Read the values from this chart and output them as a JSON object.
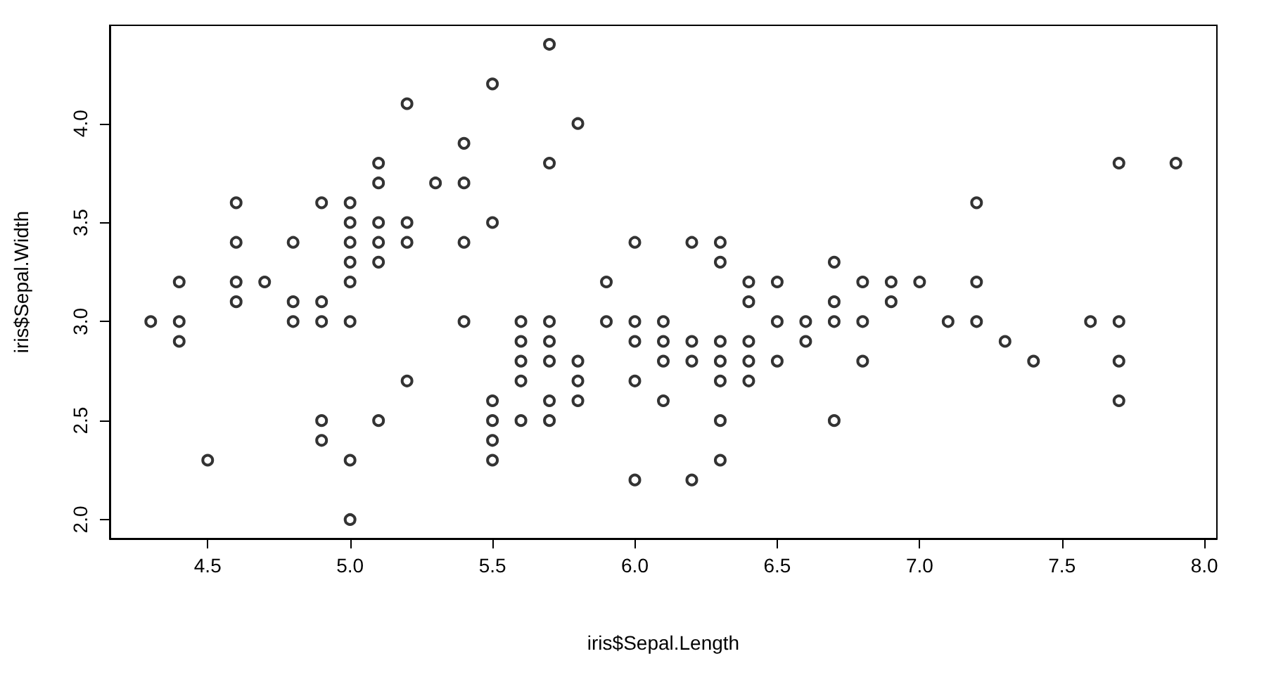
{
  "chart_data": {
    "type": "scatter",
    "xlabel": "iris$Sepal.Length",
    "ylabel": "iris$Sepal.Width",
    "x": [
      4.3,
      4.4,
      4.4,
      4.4,
      4.5,
      4.6,
      4.6,
      4.6,
      4.6,
      4.7,
      4.8,
      4.8,
      4.8,
      4.9,
      4.9,
      4.9,
      4.9,
      4.9,
      5.0,
      5.0,
      5.0,
      5.0,
      5.0,
      5.0,
      5.0,
      5.0,
      5.1,
      5.1,
      5.1,
      5.1,
      5.1,
      5.1,
      5.2,
      5.2,
      5.2,
      5.2,
      5.3,
      5.4,
      5.4,
      5.4,
      5.4,
      5.5,
      5.5,
      5.5,
      5.5,
      5.5,
      5.5,
      5.6,
      5.6,
      5.6,
      5.6,
      5.6,
      5.7,
      5.7,
      5.7,
      5.7,
      5.7,
      5.7,
      5.7,
      5.8,
      5.8,
      5.8,
      5.8,
      5.9,
      5.9,
      6.0,
      6.0,
      6.0,
      6.0,
      6.0,
      6.1,
      6.1,
      6.1,
      6.1,
      6.2,
      6.2,
      6.2,
      6.2,
      6.3,
      6.3,
      6.3,
      6.3,
      6.3,
      6.3,
      6.3,
      6.4,
      6.4,
      6.4,
      6.4,
      6.4,
      6.5,
      6.5,
      6.5,
      6.6,
      6.6,
      6.7,
      6.7,
      6.7,
      6.7,
      6.8,
      6.8,
      6.8,
      6.9,
      6.9,
      7.0,
      7.1,
      7.2,
      7.2,
      7.2,
      7.3,
      7.4,
      7.6,
      7.7,
      7.7,
      7.7,
      7.7,
      7.9
    ],
    "values": [
      3.0,
      2.9,
      3.0,
      3.2,
      2.3,
      3.1,
      3.4,
      3.6,
      3.2,
      3.2,
      3.4,
      3.0,
      3.1,
      3.0,
      3.1,
      3.6,
      2.4,
      2.5,
      3.6,
      3.4,
      3.0,
      3.2,
      3.5,
      3.3,
      2.0,
      2.3,
      3.5,
      3.8,
      3.7,
      3.3,
      3.4,
      2.5,
      3.5,
      3.4,
      4.1,
      2.7,
      3.7,
      3.9,
      3.7,
      3.4,
      3.0,
      4.2,
      3.5,
      2.3,
      2.4,
      2.5,
      2.6,
      2.9,
      3.0,
      2.5,
      2.7,
      2.8,
      4.4,
      3.8,
      2.8,
      2.6,
      3.0,
      2.9,
      2.5,
      4.0,
      2.7,
      2.6,
      2.8,
      3.0,
      3.2,
      2.2,
      2.9,
      2.7,
      3.4,
      3.0,
      2.9,
      2.8,
      3.0,
      2.6,
      2.2,
      2.9,
      2.8,
      3.4,
      3.3,
      2.5,
      2.3,
      2.9,
      2.7,
      2.8,
      3.4,
      3.2,
      2.9,
      2.7,
      2.8,
      3.1,
      2.8,
      3.0,
      3.2,
      2.9,
      3.0,
      3.1,
      3.0,
      2.5,
      3.3,
      2.8,
      3.0,
      3.2,
      3.1,
      3.2,
      3.2,
      3.0,
      3.6,
      3.2,
      3.0,
      2.9,
      2.8,
      3.0,
      3.8,
      2.6,
      2.8,
      3.0,
      3.8
    ],
    "color": "#000000",
    "marker": "circle",
    "grid": false,
    "xlim": [
      4.156,
      8.044
    ],
    "xticks": [
      4.5,
      {
        "value": 5,
        "label": "5.0"
      },
      5.5,
      {
        "value": 6,
        "label": "6.0"
      },
      6.5,
      {
        "value": 7,
        "label": "7.0"
      },
      7.5,
      {
        "value": 8,
        "label": "8.0"
      }
    ],
    "ylim": [
      1.904,
      4.496
    ],
    "yticks": [
      {
        "value": 2,
        "label": "2.0"
      },
      2.5,
      {
        "value": 3,
        "label": "3.0"
      },
      3.5,
      {
        "value": 4,
        "label": "4.0"
      }
    ]
  }
}
